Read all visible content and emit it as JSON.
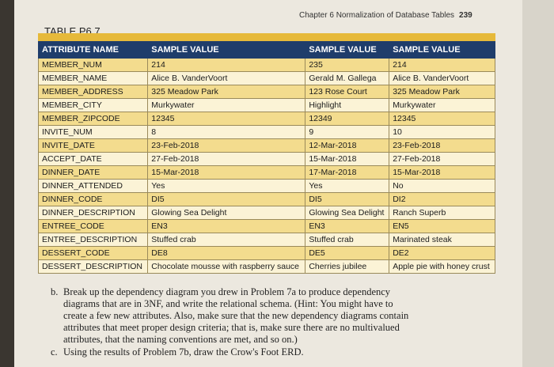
{
  "header": {
    "running_head": "Chapter 6 Normalization of Database Tables",
    "page_number": "239"
  },
  "table": {
    "title": "TABLE P6.7",
    "columns": [
      "ATTRIBUTE NAME",
      "SAMPLE VALUE",
      "SAMPLE VALUE",
      "SAMPLE VALUE"
    ],
    "rows": [
      [
        "MEMBER_NUM",
        "214",
        "235",
        "214"
      ],
      [
        "MEMBER_NAME",
        "Alice B. VanderVoort",
        "Gerald M. Gallega",
        "Alice B. VanderVoort"
      ],
      [
        "MEMBER_ADDRESS",
        "325 Meadow Park",
        "123 Rose Court",
        "325 Meadow Park"
      ],
      [
        "MEMBER_CITY",
        "Murkywater",
        "Highlight",
        "Murkywater"
      ],
      [
        "MEMBER_ZIPCODE",
        "12345",
        "12349",
        "12345"
      ],
      [
        "INVITE_NUM",
        "8",
        "9",
        "10"
      ],
      [
        "INVITE_DATE",
        "23-Feb-2018",
        "12-Mar-2018",
        "23-Feb-2018"
      ],
      [
        "ACCEPT_DATE",
        "27-Feb-2018",
        "15-Mar-2018",
        "27-Feb-2018"
      ],
      [
        "DINNER_DATE",
        "15-Mar-2018",
        "17-Mar-2018",
        "15-Mar-2018"
      ],
      [
        "DINNER_ATTENDED",
        "Yes",
        "Yes",
        "No"
      ],
      [
        "DINNER_CODE",
        "DI5",
        "DI5",
        "DI2"
      ],
      [
        "DINNER_DESCRIPTION",
        "Glowing Sea Delight",
        "Glowing Sea Delight",
        "Ranch Superb"
      ],
      [
        "ENTREE_CODE",
        "EN3",
        "EN3",
        "EN5"
      ],
      [
        "ENTREE_DESCRIPTION",
        "Stuffed crab",
        "Stuffed crab",
        "Marinated steak"
      ],
      [
        "DESSERT_CODE",
        "DE8",
        "DE5",
        "DE2"
      ],
      [
        "DESSERT_DESCRIPTION",
        "Chocolate mousse with raspberry sauce",
        "Cherries jubilee",
        "Apple pie with honey crust"
      ]
    ]
  },
  "questions": [
    {
      "label": "b.",
      "text": "Break up the dependency diagram you drew in Problem 7a to produce dependency diagrams that are in 3NF, and write the relational schema. (Hint: You might have to create a few new attributes. Also, make sure that the new dependency diagrams contain attributes that meet proper design criteria; that is, make sure there are no multivalued attributes, that the naming conventions are met, and so on.)"
    },
    {
      "label": "c.",
      "text": "Using the results of Problem 7b, draw the Crow's Foot ERD."
    }
  ]
}
